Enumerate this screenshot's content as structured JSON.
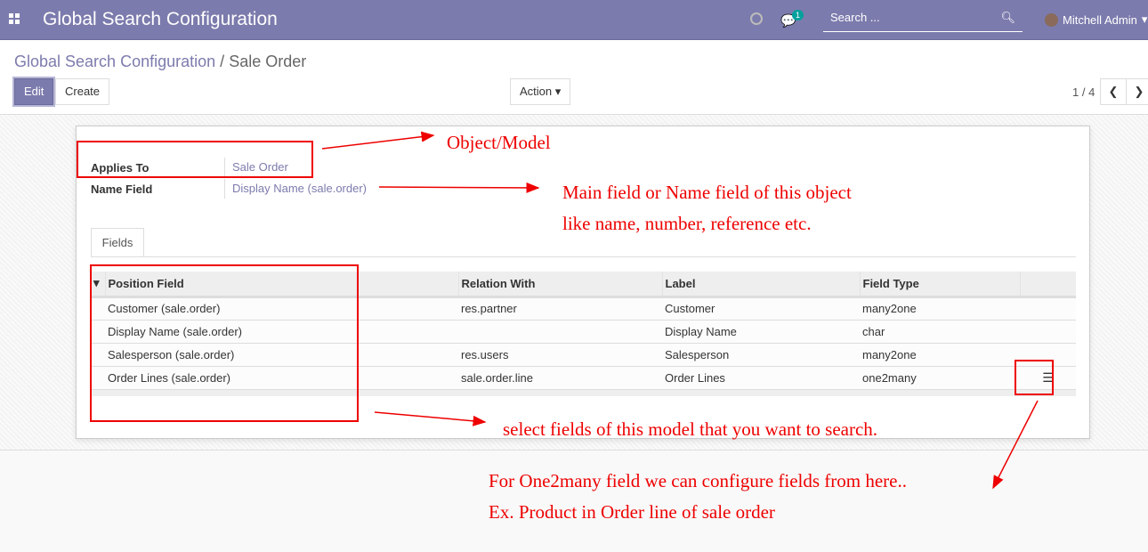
{
  "navbar": {
    "title": "Global Search Configuration",
    "chat_count": "1",
    "search_placeholder": "Search ...",
    "user": "Mitchell Admin"
  },
  "breadcrumb": {
    "parent": "Global Search Configuration",
    "separator": "/",
    "current": "Sale Order"
  },
  "buttons": {
    "edit": "Edit",
    "create": "Create",
    "action": "Action ▾"
  },
  "pager": {
    "value": "1 / 4"
  },
  "form": {
    "applies_to_label": "Applies To",
    "applies_to": "Sale Order",
    "name_field_label": "Name Field",
    "name_field": "Display Name (sale.order)"
  },
  "tabs": [
    {
      "label": "Fields"
    }
  ],
  "table": {
    "headers": [
      "Position Field",
      "Relation With",
      "Label",
      "Field Type"
    ],
    "rows": [
      [
        "Customer (sale.order)",
        "res.partner",
        "Customer",
        "many2one"
      ],
      [
        "Display Name (sale.order)",
        "",
        "Display Name",
        "char"
      ],
      [
        "Salesperson (sale.order)",
        "res.users",
        "Salesperson",
        "many2one"
      ],
      [
        "Order Lines (sale.order)",
        "sale.order.line",
        "Order Lines",
        "one2many"
      ]
    ]
  },
  "annotations": {
    "a1": "Object/Model",
    "a2": "Main field or Name field of this object",
    "a3": "like name, number, reference etc.",
    "a4": "select fields of this model that you want to search.",
    "a5": "For One2many field we can configure fields from here..",
    "a6": "Ex. Product in Order line of sale order"
  },
  "colors": {
    "brand": "#7c7bad",
    "annotation": "#ee0000"
  }
}
